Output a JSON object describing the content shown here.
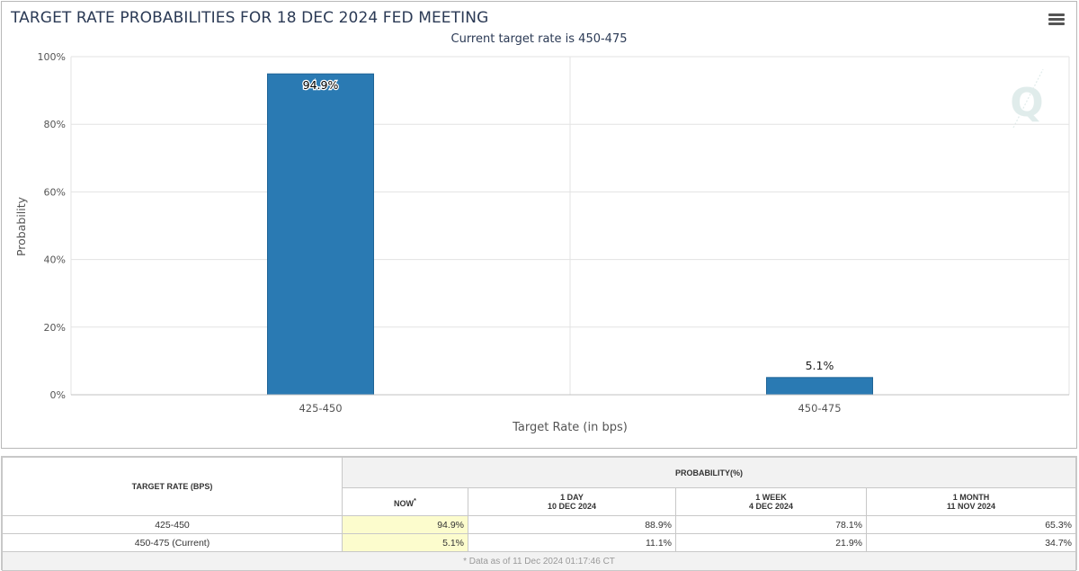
{
  "header": {
    "title": "TARGET RATE PROBABILITIES FOR 18 DEC 2024 FED MEETING",
    "subtitle": "Current target rate is 450-475"
  },
  "chart_data": {
    "type": "bar",
    "categories": [
      "425-450",
      "450-475"
    ],
    "values": [
      94.9,
      5.1
    ],
    "data_labels": [
      "94.9%",
      "5.1%"
    ],
    "xlabel": "Target Rate (in bps)",
    "ylabel": "Probability",
    "ylim": [
      0,
      100
    ],
    "yticks": [
      "0%",
      "20%",
      "40%",
      "60%",
      "80%",
      "100%"
    ],
    "grid": true,
    "bar_color": "#2a7ab3"
  },
  "table": {
    "target_rate_header": "TARGET RATE (BPS)",
    "probability_header": "PROBABILITY(%)",
    "columns": [
      {
        "line1": "NOW",
        "marker": "*",
        "line2": ""
      },
      {
        "line1": "1 DAY",
        "line2": "10 DEC 2024"
      },
      {
        "line1": "1 WEEK",
        "line2": "4 DEC 2024"
      },
      {
        "line1": "1 MONTH",
        "line2": "11 NOV 2024"
      }
    ],
    "rows": [
      {
        "rate": "425-450",
        "values": [
          "94.9%",
          "88.9%",
          "78.1%",
          "65.3%"
        ]
      },
      {
        "rate": "450-475 (Current)",
        "values": [
          "5.1%",
          "11.1%",
          "21.9%",
          "34.7%"
        ]
      }
    ],
    "footnote": "* Data as of 11 Dec 2024 01:17:46 CT"
  }
}
